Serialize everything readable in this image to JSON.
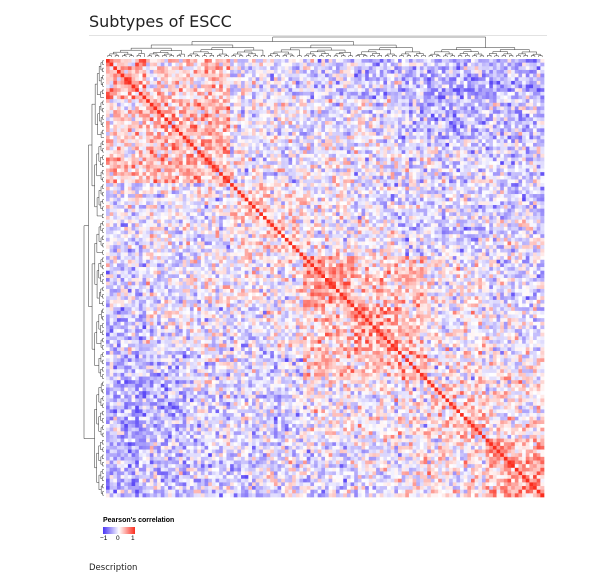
{
  "page": {
    "title": "Subtypes of ESCC",
    "description_label": "Description"
  },
  "chart_data": {
    "type": "heatmap",
    "title": "",
    "n_samples": 120,
    "diagonal_value": 1,
    "row_dendrogram": true,
    "column_dendrogram": true,
    "blocks": [
      {
        "start": 0,
        "end": 11,
        "within_corr": 0.35
      },
      {
        "start": 11,
        "end": 22,
        "within_corr": 0.3
      },
      {
        "start": 22,
        "end": 34,
        "within_corr": 0.32
      },
      {
        "start": 34,
        "end": 44,
        "within_corr": 0.2
      },
      {
        "start": 44,
        "end": 54,
        "within_corr": 0.15
      },
      {
        "start": 54,
        "end": 68,
        "within_corr": 0.45
      },
      {
        "start": 68,
        "end": 80,
        "within_corr": 0.4
      },
      {
        "start": 80,
        "end": 88,
        "within_corr": 0.3
      },
      {
        "start": 88,
        "end": 104,
        "within_corr": 0.15
      },
      {
        "start": 104,
        "end": 120,
        "within_corr": 0.4
      }
    ],
    "color_scale": {
      "min": -1,
      "mid": 0,
      "max": 1,
      "low_color": "#4b36f5",
      "mid_color": "#ffffff",
      "high_color": "#fb2d1e"
    },
    "legend": {
      "title": "Pearson's correlation",
      "ticks": [
        "−1",
        "0",
        "1"
      ],
      "placement": "bottom-left"
    }
  }
}
